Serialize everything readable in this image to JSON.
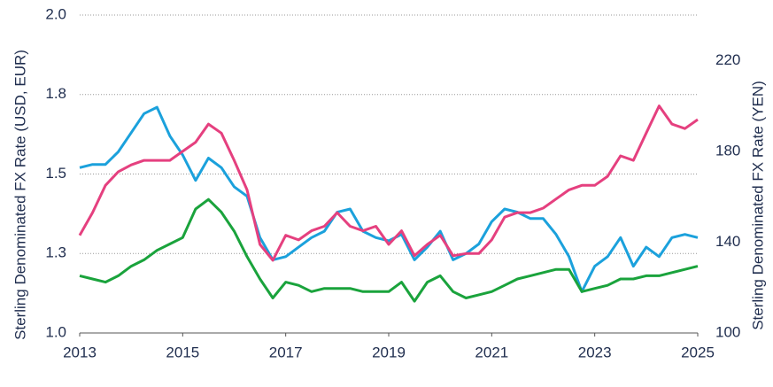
{
  "chart_data": {
    "type": "line",
    "ylabel": "Sterling Denominated FX Rate (USD, EUR)",
    "y2label": "Sterling Denominated FX Rate (YEN)",
    "x": [
      2013,
      2013.25,
      2013.5,
      2013.75,
      2014,
      2014.25,
      2014.5,
      2014.75,
      2015,
      2015.25,
      2015.5,
      2015.75,
      2016,
      2016.25,
      2016.5,
      2016.75,
      2017,
      2017.25,
      2017.5,
      2017.75,
      2018,
      2018.25,
      2018.5,
      2018.75,
      2019,
      2019.25,
      2019.5,
      2019.75,
      2020,
      2020.25,
      2020.5,
      2020.75,
      2021,
      2021.25,
      2021.5,
      2021.75,
      2022,
      2022.25,
      2022.5,
      2022.75,
      2023,
      2023.25,
      2023.5,
      2023.75,
      2024,
      2024.25,
      2024.5,
      2024.75,
      2025
    ],
    "series": [
      {
        "color": "#1ba1dc",
        "values": [
          1.52,
          1.53,
          1.53,
          1.57,
          1.63,
          1.69,
          1.71,
          1.62,
          1.56,
          1.48,
          1.55,
          1.52,
          1.46,
          1.43,
          1.3,
          1.23,
          1.24,
          1.27,
          1.3,
          1.32,
          1.38,
          1.39,
          1.32,
          1.3,
          1.29,
          1.31,
          1.23,
          1.27,
          1.32,
          1.23,
          1.25,
          1.28,
          1.35,
          1.39,
          1.38,
          1.36,
          1.36,
          1.31,
          1.24,
          1.13,
          1.21,
          1.24,
          1.3,
          1.21,
          1.27,
          1.24,
          1.3,
          1.31,
          1.3
        ]
      },
      {
        "color": "#1aa33c",
        "values": [
          1.18,
          1.17,
          1.16,
          1.18,
          1.21,
          1.23,
          1.26,
          1.28,
          1.3,
          1.39,
          1.42,
          1.38,
          1.32,
          1.24,
          1.17,
          1.11,
          1.16,
          1.15,
          1.13,
          1.14,
          1.14,
          1.14,
          1.13,
          1.13,
          1.13,
          1.16,
          1.1,
          1.16,
          1.18,
          1.13,
          1.11,
          1.12,
          1.13,
          1.15,
          1.17,
          1.18,
          1.19,
          1.2,
          1.2,
          1.13,
          1.14,
          1.15,
          1.17,
          1.17,
          1.18,
          1.18,
          1.19,
          1.2,
          1.21
        ]
      },
      {
        "color": "#e5407f",
        "axis": "y2",
        "values": [
          143,
          153,
          165,
          171,
          174,
          176,
          176,
          176,
          180,
          184,
          192,
          188,
          176,
          163,
          139,
          132,
          143,
          141,
          145,
          147,
          153,
          147,
          145,
          147,
          139,
          145,
          134,
          139,
          143,
          134,
          135,
          135,
          141,
          151,
          153,
          153,
          155,
          159,
          163,
          165,
          165,
          169,
          178,
          176,
          188,
          200,
          192,
          190,
          194
        ]
      }
    ],
    "xlim": [
      2013,
      2025
    ],
    "xticks": [
      2013,
      2015,
      2017,
      2019,
      2021,
      2023,
      2025
    ],
    "ylim": [
      1,
      2
    ],
    "yticks": [
      {
        "value": 1,
        "label": "1.0"
      },
      {
        "value": 1.25,
        "label": "1.3"
      },
      1.5,
      {
        "value": 1.75,
        "label": "1.8"
      },
      {
        "value": 2,
        "label": "2.0"
      }
    ],
    "y2lim": [
      100,
      240
    ],
    "y2ticks": [
      100,
      140,
      180,
      220
    ],
    "grid": true
  }
}
